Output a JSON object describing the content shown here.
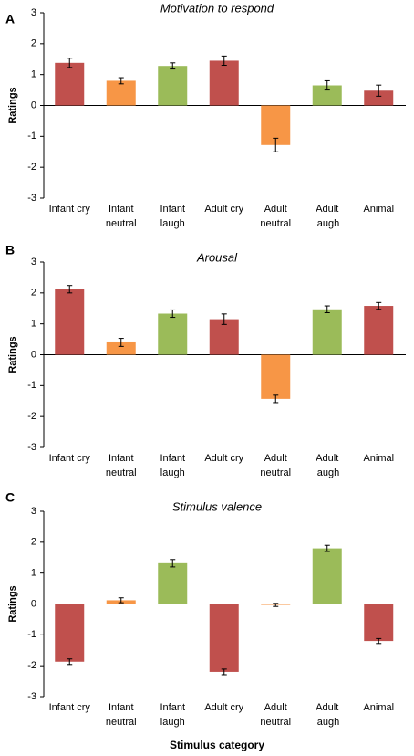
{
  "colors": {
    "red": "#c0504d",
    "orange": "#f79646",
    "green": "#9bbb59"
  },
  "x_axis_title": "Stimulus category",
  "chart_data": [
    {
      "type": "bar",
      "panel": "A",
      "title": "Motivation to respond",
      "ylabel": "Ratings",
      "ylim": [
        -3,
        3
      ],
      "yticks": [
        3,
        2,
        1,
        0,
        -1,
        -2,
        -3
      ],
      "categories": [
        [
          "Infant cry"
        ],
        [
          "Infant",
          "neutral"
        ],
        [
          "Infant",
          "laugh"
        ],
        [
          "Adult cry"
        ],
        [
          "Adult",
          "neutral"
        ],
        [
          "Adult",
          "laugh"
        ],
        [
          "Animal"
        ]
      ],
      "values": [
        1.38,
        0.8,
        1.28,
        1.45,
        -1.28,
        0.65,
        0.48
      ],
      "errors": [
        0.15,
        0.1,
        0.1,
        0.15,
        0.22,
        0.15,
        0.18
      ],
      "bar_colors": [
        "red",
        "orange",
        "green",
        "red",
        "orange",
        "green",
        "red"
      ]
    },
    {
      "type": "bar",
      "panel": "B",
      "title": "Arousal",
      "ylabel": "Ratings",
      "ylim": [
        -3,
        3
      ],
      "yticks": [
        3,
        2,
        1,
        0,
        -1,
        -2,
        -3
      ],
      "categories": [
        [
          "Infant cry"
        ],
        [
          "Infant",
          "neutral"
        ],
        [
          "Infant",
          "laugh"
        ],
        [
          "Adult cry"
        ],
        [
          "Adult",
          "neutral"
        ],
        [
          "Adult",
          "laugh"
        ],
        [
          "Animal"
        ]
      ],
      "values": [
        2.12,
        0.4,
        1.33,
        1.15,
        -1.43,
        1.47,
        1.58
      ],
      "errors": [
        0.12,
        0.13,
        0.12,
        0.17,
        0.12,
        0.11,
        0.11
      ],
      "bar_colors": [
        "red",
        "orange",
        "green",
        "red",
        "orange",
        "green",
        "red"
      ]
    },
    {
      "type": "bar",
      "panel": "C",
      "title": "Stimulus valence",
      "ylabel": "Ratings",
      "ylim": [
        -3,
        3
      ],
      "yticks": [
        3,
        2,
        1,
        0,
        -1,
        -2,
        -3
      ],
      "categories": [
        [
          "Infant cry"
        ],
        [
          "Infant",
          "neutral"
        ],
        [
          "Infant",
          "laugh"
        ],
        [
          "Adult cry"
        ],
        [
          "Adult",
          "neutral"
        ],
        [
          "Adult",
          "laugh"
        ],
        [
          "Animal"
        ]
      ],
      "values": [
        -1.87,
        0.12,
        1.32,
        -2.2,
        -0.03,
        1.8,
        -1.2
      ],
      "errors": [
        0.09,
        0.08,
        0.12,
        0.09,
        0.05,
        0.1,
        0.08
      ],
      "bar_colors": [
        "red",
        "orange",
        "green",
        "red",
        "orange",
        "green",
        "red"
      ]
    }
  ]
}
